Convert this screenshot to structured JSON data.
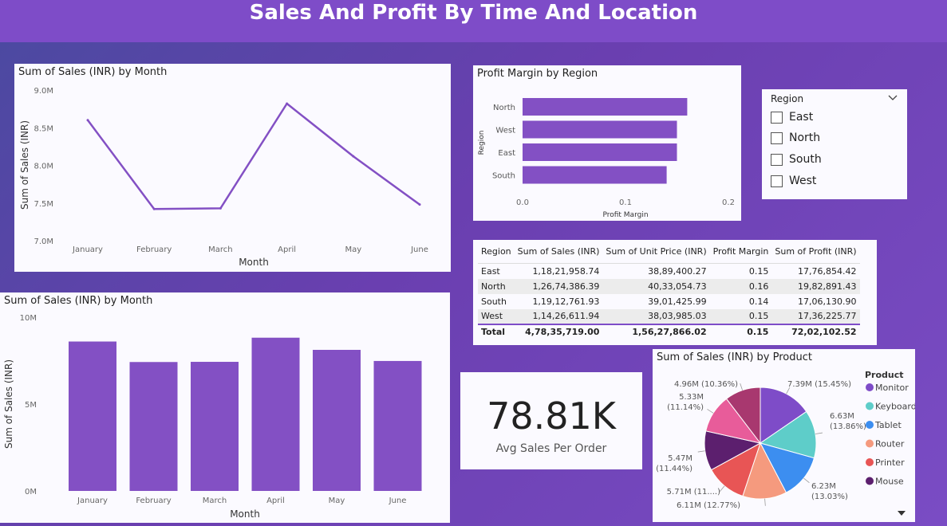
{
  "page": {
    "title": "Sales And Profit By Time And Location"
  },
  "colors": {
    "bar": "#8350c4",
    "line": "#8350c4"
  },
  "slicer": {
    "title": "Region",
    "options": [
      "East",
      "North",
      "South",
      "West"
    ]
  },
  "kpi": {
    "value": "78.81K",
    "label": "Avg Sales Per Order"
  },
  "matrix": {
    "headers": [
      "Region",
      "Sum of Sales (INR)",
      "Sum of Unit Price (INR)",
      "Profit Margin",
      "Sum of Profit (INR)"
    ],
    "rows": [
      [
        "East",
        "1,18,21,958.74",
        "38,89,400.27",
        "0.15",
        "17,76,854.42"
      ],
      [
        "North",
        "1,26,74,386.39",
        "40,33,054.73",
        "0.16",
        "19,82,891.43"
      ],
      [
        "South",
        "1,19,12,761.93",
        "39,01,425.99",
        "0.14",
        "17,06,130.90"
      ],
      [
        "West",
        "1,14,26,611.94",
        "38,03,985.03",
        "0.15",
        "17,36,225.77"
      ]
    ],
    "total": [
      "Total",
      "4,78,35,719.00",
      "1,56,27,866.02",
      "0.15",
      "72,02,102.52"
    ]
  },
  "chart_data": [
    {
      "type": "line",
      "title": "Sum of Sales (INR) by Month",
      "xlabel": "Month",
      "ylabel": "Sum of Sales (INR)",
      "categories": [
        "January",
        "February",
        "March",
        "April",
        "May",
        "June"
      ],
      "values": [
        8600000,
        7420000,
        7430000,
        8820000,
        8120000,
        7480000
      ],
      "ylim": [
        7000000,
        9000000
      ],
      "yticks": [
        7000000,
        7500000,
        8000000,
        8500000,
        9000000
      ],
      "ytick_labels": [
        "7.0M",
        "7.5M",
        "8.0M",
        "8.5M",
        "9.0M"
      ],
      "grid": false
    },
    {
      "type": "bar",
      "orientation": "horizontal",
      "title": "Profit Margin by Region",
      "xlabel": "Profit Margin",
      "ylabel": "Region",
      "categories": [
        "North",
        "West",
        "East",
        "South"
      ],
      "values": [
        0.16,
        0.15,
        0.15,
        0.14
      ],
      "xlim": [
        0,
        0.2
      ],
      "xticks": [
        0,
        0.1,
        0.2
      ],
      "xtick_labels": [
        "0.0",
        "0.1",
        "0.2"
      ]
    },
    {
      "type": "bar",
      "title": "Sum of Sales (INR) by Month",
      "xlabel": "Month",
      "ylabel": "Sum of Sales (INR)",
      "categories": [
        "January",
        "February",
        "March",
        "April",
        "May",
        "June"
      ],
      "values": [
        8600000,
        7420000,
        7430000,
        8820000,
        8120000,
        7480000
      ],
      "ylim": [
        0,
        10000000
      ],
      "yticks": [
        0,
        5000000,
        10000000
      ],
      "ytick_labels": [
        "0M",
        "5M",
        "10M"
      ]
    },
    {
      "type": "pie",
      "title": "Sum of Sales (INR) by Product",
      "legend_title": "Product",
      "legend_position": "right",
      "slices": [
        {
          "name": "Monitor",
          "value": 7390000,
          "label": "7.39M (15.45%)",
          "color": "#7e4cc8"
        },
        {
          "name": "Keyboard",
          "value": 6630000,
          "label": "6.63M (13.86%)",
          "color": "#5ecdc9"
        },
        {
          "name": "Tablet",
          "value": 6230000,
          "label": "6.23M (13.03%)",
          "color": "#3c8ef0"
        },
        {
          "name": "Router",
          "value": 6110000,
          "label": "6.11M (12.77%)",
          "color": "#f59a7e"
        },
        {
          "name": "Printer",
          "value": 5710000,
          "label": "5.71M (11....)",
          "color": "#e85555"
        },
        {
          "name": "Mouse",
          "value": 5470000,
          "label": "5.47M (11.44%)",
          "color": "#5c1f6e"
        },
        {
          "name": "",
          "value": 5330000,
          "label": "5.33M (11.14%)",
          "color": "#e85c9a"
        },
        {
          "name": "",
          "value": 4960000,
          "label": "4.96M (10.36%)",
          "color": "#a8386f"
        }
      ]
    }
  ]
}
